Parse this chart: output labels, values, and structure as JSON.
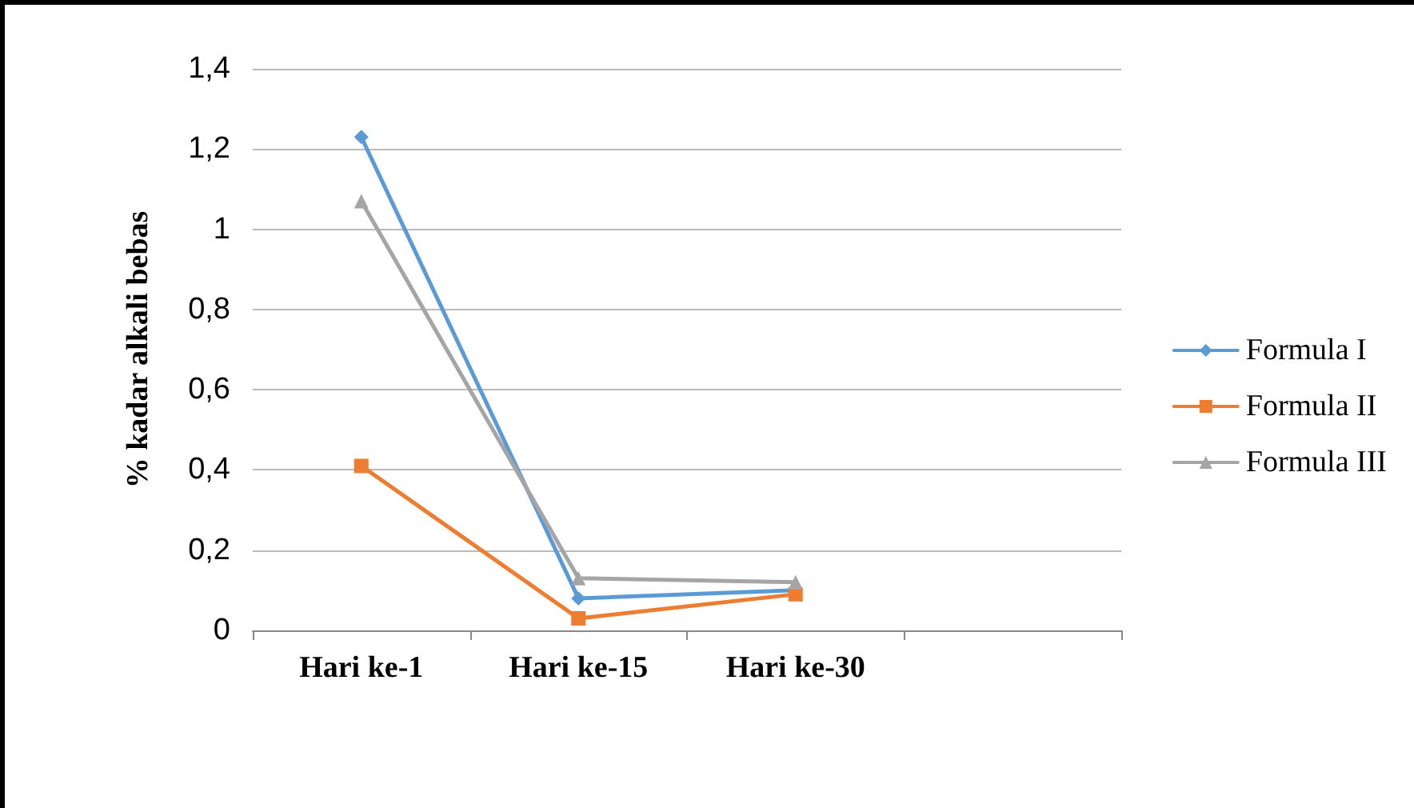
{
  "chart_data": {
    "type": "line",
    "ylabel": "% kadar alkali bebas",
    "categories": [
      "Hari ke-1",
      "Hari ke-15",
      "Hari ke-30",
      null
    ],
    "series": [
      {
        "name": "Formula I",
        "color": "#5b9bd5",
        "marker": "diamond",
        "values": [
          1.23,
          0.08,
          0.1,
          null
        ]
      },
      {
        "name": "Formula II",
        "color": "#ed7d31",
        "marker": "square",
        "values": [
          0.41,
          0.03,
          0.09,
          null
        ]
      },
      {
        "name": "Formula III",
        "color": "#a5a5a5",
        "marker": "triangle",
        "values": [
          1.07,
          0.13,
          0.12,
          null
        ]
      }
    ],
    "ylim": [
      0,
      1.4
    ],
    "yticks": [
      0,
      {
        "value": 0.2,
        "label": "0,2"
      },
      {
        "value": 0.4,
        "label": "0,4"
      },
      {
        "value": 0.6,
        "label": "0,6"
      },
      {
        "value": 0.8,
        "label": "0,8"
      },
      1,
      {
        "value": 1.2,
        "label": "1,2"
      },
      {
        "value": 1.4,
        "label": "1,4"
      }
    ],
    "grid": "y",
    "legend": "right",
    "line_style": "solid"
  }
}
